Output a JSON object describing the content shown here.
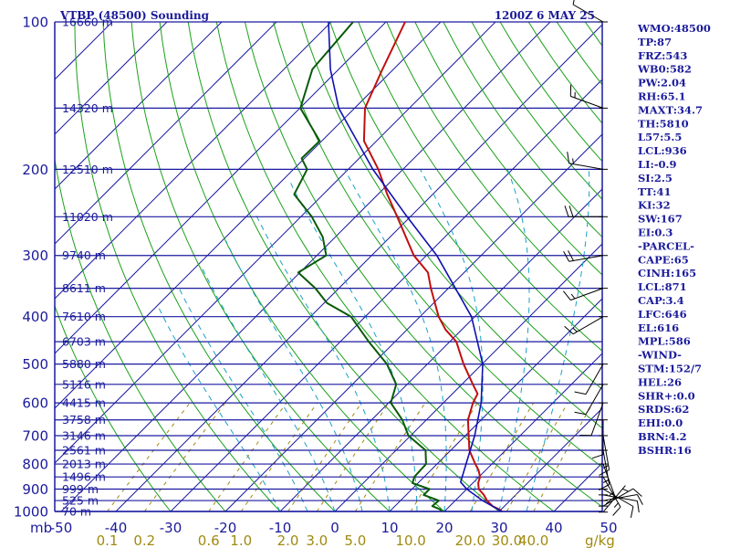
{
  "title": {
    "left": "VTBP (48500) Sounding",
    "right": "1200Z  6 MAY 25"
  },
  "indices": [
    "WMO:48500",
    "TP:87",
    "FRZ:543",
    "WB0:582",
    "PW:2.04",
    "RH:65.1",
    "MAXT:34.7",
    "TH:5810",
    "L57:5.5",
    "LCL:936",
    "LI:-0.9",
    "SI:2.5",
    "TT:41",
    "KI:32",
    "SW:167",
    "EI:0.3",
    "-PARCEL-",
    "CAPE:65",
    "CINH:165",
    "LCL:871",
    "CAP:3.4",
    "LFC:646",
    "EL:616",
    "MPL:586",
    "-WIND-",
    "STM:152/7",
    "HEL:26",
    "SHR+:0.0",
    "SRDS:62",
    "EHI:0.0",
    "BRN:4.2",
    "BSHR:16"
  ],
  "colors": {
    "isobar": "#1a1aa0",
    "isotherm": "#1a1aa0",
    "dry_adiabat": "#1aa01a",
    "moist_adiabat": "#1aa0c8",
    "mixing_ratio": "#a08a10",
    "temperature": "#c01010",
    "dewpoint": "#0a5a0a",
    "parcel": "#1010b0",
    "wind": "#000000",
    "text": "#1a1a9a"
  },
  "chart_data": {
    "type": "line",
    "title": "VTBP (48500) Sounding",
    "subtitle": "1200Z  6 MAY 25",
    "ylabel": "mb",
    "xlabel": "",
    "pressure_labels": [
      100,
      200,
      300,
      400,
      500,
      600,
      700,
      800,
      900,
      1000
    ],
    "temperature_ticks": [
      -50,
      -40,
      -30,
      -20,
      -10,
      0,
      10,
      20,
      30,
      40,
      50
    ],
    "mixing_ratio_ticks": [
      "0.1",
      "0.2",
      "0.6",
      "1.0",
      "2.0",
      "3.0",
      "5.0",
      "10.0",
      "20.0",
      "30.0",
      "40.0"
    ],
    "mixing_ratio_unit": "g/kg",
    "height_labels": [
      {
        "p": 100,
        "label": "16660 m"
      },
      {
        "p": 150,
        "label": "14320 m"
      },
      {
        "p": 200,
        "label": "12510 m"
      },
      {
        "p": 250,
        "label": "11020 m"
      },
      {
        "p": 300,
        "label": "9740 m"
      },
      {
        "p": 350,
        "label": "8611 m"
      },
      {
        "p": 400,
        "label": "7610 m"
      },
      {
        "p": 450,
        "label": "6703 m"
      },
      {
        "p": 500,
        "label": "5880 m"
      },
      {
        "p": 550,
        "label": "5116 m"
      },
      {
        "p": 600,
        "label": "4415 m"
      },
      {
        "p": 650,
        "label": "3758 m"
      },
      {
        "p": 700,
        "label": "3146 m"
      },
      {
        "p": 750,
        "label": "2561 m"
      },
      {
        "p": 800,
        "label": "2013 m"
      },
      {
        "p": 850,
        "label": "1496 m"
      },
      {
        "p": 900,
        "label": "999 m"
      },
      {
        "p": 950,
        "label": "525 m"
      },
      {
        "p": 1000,
        "label": "70 m"
      }
    ],
    "ylim": [
      1000,
      100
    ],
    "xlim": [
      -50,
      50
    ],
    "series": [
      {
        "key": "temperature",
        "points": [
          [
            1003,
            30.8
          ],
          [
            990,
            29.6
          ],
          [
            975,
            27.8
          ],
          [
            950,
            25.8
          ],
          [
            925,
            24.2
          ],
          [
            900,
            22.2
          ],
          [
            875,
            21.0
          ],
          [
            850,
            20.2
          ],
          [
            825,
            18.8
          ],
          [
            800,
            17.0
          ],
          [
            750,
            13.4
          ],
          [
            700,
            10.6
          ],
          [
            650,
            7.6
          ],
          [
            600,
            5.4
          ],
          [
            575,
            4.6
          ],
          [
            550,
            2.0
          ],
          [
            500,
            -3.4
          ],
          [
            450,
            -8.8
          ],
          [
            425,
            -13.0
          ],
          [
            400,
            -16.6
          ],
          [
            350,
            -23.2
          ],
          [
            325,
            -26.6
          ],
          [
            300,
            -32.3
          ],
          [
            250,
            -42.4
          ],
          [
            225,
            -48.3
          ],
          [
            200,
            -54.5
          ],
          [
            175,
            -62.3
          ],
          [
            150,
            -68.1
          ],
          [
            125,
            -72.0
          ],
          [
            100,
            -76.5
          ]
        ]
      },
      {
        "key": "dewpoint",
        "points": [
          [
            1003,
            19.8
          ],
          [
            990,
            18.8
          ],
          [
            975,
            16.8
          ],
          [
            950,
            17.0
          ],
          [
            925,
            13.2
          ],
          [
            900,
            13.2
          ],
          [
            875,
            9.0
          ],
          [
            850,
            8.2
          ],
          [
            800,
            8.0
          ],
          [
            750,
            5.4
          ],
          [
            700,
            -0.4
          ],
          [
            650,
            -4.4
          ],
          [
            600,
            -9.6
          ],
          [
            550,
            -12.0
          ],
          [
            500,
            -17.4
          ],
          [
            450,
            -24.8
          ],
          [
            400,
            -32.6
          ],
          [
            375,
            -39.5
          ],
          [
            350,
            -44.3
          ],
          [
            325,
            -50.3
          ],
          [
            300,
            -48.3
          ],
          [
            275,
            -52.3
          ],
          [
            250,
            -58.0
          ],
          [
            225,
            -65.3
          ],
          [
            200,
            -67.5
          ],
          [
            190,
            -70.5
          ],
          [
            175,
            -70.4
          ],
          [
            150,
            -79.9
          ],
          [
            125,
            -84.8
          ],
          [
            100,
            -86.0
          ]
        ]
      },
      {
        "key": "parcel",
        "points": [
          [
            1003,
            30.8
          ],
          [
            950,
            25.0
          ],
          [
            900,
            20.0
          ],
          [
            871,
            17.6
          ],
          [
            800,
            15.3
          ],
          [
            700,
            11.7
          ],
          [
            600,
            6.9
          ],
          [
            500,
            0.1
          ],
          [
            400,
            -10.6
          ],
          [
            300,
            -28.1
          ],
          [
            250,
            -40.6
          ],
          [
            200,
            -55.5
          ],
          [
            150,
            -72.9
          ],
          [
            125,
            -81.5
          ],
          [
            100,
            -90.5
          ]
        ]
      }
    ],
    "winds": [
      {
        "p": 1003,
        "dir": 40,
        "spd": 5
      },
      {
        "p": 975,
        "dir": 60,
        "spd": 10
      },
      {
        "p": 950,
        "dir": 80,
        "spd": 10
      },
      {
        "p": 925,
        "dir": 100,
        "spd": 10
      },
      {
        "p": 900,
        "dir": 120,
        "spd": 10
      },
      {
        "p": 850,
        "dir": 150,
        "spd": 15
      },
      {
        "p": 800,
        "dir": 160,
        "spd": 15
      },
      {
        "p": 750,
        "dir": 170,
        "spd": 15
      },
      {
        "p": 700,
        "dir": 170,
        "spd": 15
      },
      {
        "p": 650,
        "dir": 180,
        "spd": 10
      },
      {
        "p": 600,
        "dir": 200,
        "spd": 10
      },
      {
        "p": 550,
        "dir": 210,
        "spd": 10
      },
      {
        "p": 500,
        "dir": 210,
        "spd": 10
      },
      {
        "p": 400,
        "dir": 240,
        "spd": 15
      },
      {
        "p": 350,
        "dir": 250,
        "spd": 15
      },
      {
        "p": 300,
        "dir": 260,
        "spd": 20
      },
      {
        "p": 250,
        "dir": 270,
        "spd": 20
      },
      {
        "p": 200,
        "dir": 280,
        "spd": 15
      },
      {
        "p": 150,
        "dir": 290,
        "spd": 15
      },
      {
        "p": 100,
        "dir": 300,
        "spd": 10
      }
    ]
  }
}
